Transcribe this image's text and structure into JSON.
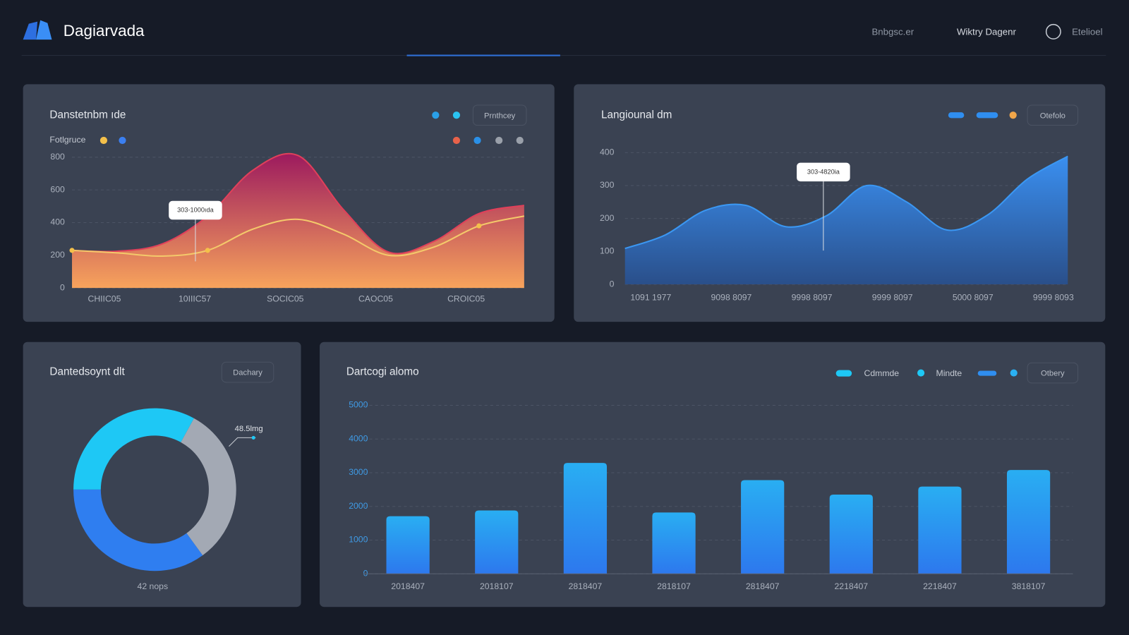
{
  "header": {
    "brand": "Dagiarvada",
    "nav": [
      "Bnbgsc.er",
      "Wiktry Dagenr",
      "Etelioel"
    ]
  },
  "chart_data": [
    {
      "type": "area",
      "title": "Danstetnbm ıde",
      "legend_label": "Fotlgruce",
      "button": "Prnthcey",
      "annotation": "303-1000ıda",
      "categories": [
        "CHIIC05",
        null,
        "10IIIC57",
        null,
        "SOCIC05",
        null,
        "CAOC05",
        null,
        "CROIC05",
        null,
        null
      ],
      "series": [
        {
          "style": "area",
          "gradient": [
            "#9c1a5e",
            "#f7a35c"
          ],
          "color": "#e0405a",
          "values": [
            230,
            225,
            270,
            440,
            720,
            810,
            480,
            220,
            285,
            455,
            505
          ]
        },
        {
          "style": "line",
          "color": "#f4c96a",
          "values": [
            230,
            215,
            195,
            230,
            360,
            420,
            330,
            200,
            250,
            380,
            440
          ]
        }
      ],
      "ylim": [
        0,
        850
      ],
      "yticks": [
        0,
        200,
        400,
        600,
        800
      ],
      "grid": true
    },
    {
      "type": "area",
      "title": "Langiounal dm",
      "button": "Otefolo",
      "annotation": "303-4820ia",
      "categories": [
        null,
        "1091 1977",
        null,
        "9098 8097",
        null,
        "9998 8097",
        null,
        "9999 8097",
        null,
        "5000 8097",
        null,
        "9999 8093"
      ],
      "series": [
        {
          "style": "area",
          "gradient": [
            "#3a8ff0",
            "#2a4f8a"
          ],
          "color": "#3b97f2",
          "values": [
            109,
            150,
            225,
            240,
            175,
            208,
            300,
            250,
            165,
            210,
            320,
            389
          ]
        }
      ],
      "ylim": [
        0,
        400
      ],
      "yticks": [
        0,
        100,
        200,
        300,
        400
      ],
      "grid": true
    },
    {
      "type": "pie",
      "title": "Dantedsoynt dlt",
      "button": "Dachary",
      "annotation": "48.5lmg",
      "label": "42 nops",
      "values": [
        33,
        32,
        35
      ],
      "colors": [
        "#1ec8f5",
        "#a3a9b4",
        "#2f7ef0"
      ]
    },
    {
      "type": "bar",
      "title": "Dartcogi alomo",
      "legend": [
        "Cdmmde",
        "Mindte"
      ],
      "button": "Otbery",
      "categories": [
        "2018407",
        "2018107",
        "2818407",
        "2818107",
        "2818407",
        "2218407",
        "2218407",
        "3818107"
      ],
      "values": [
        1710,
        1880,
        3290,
        1820,
        2780,
        2350,
        2590,
        3080
      ],
      "gradient": [
        "#29aef2",
        "#2d78ee"
      ],
      "ylim": [
        0,
        5000
      ],
      "yticks": [
        0,
        1000,
        2000,
        3000,
        4000,
        5000
      ],
      "grid": true
    }
  ]
}
